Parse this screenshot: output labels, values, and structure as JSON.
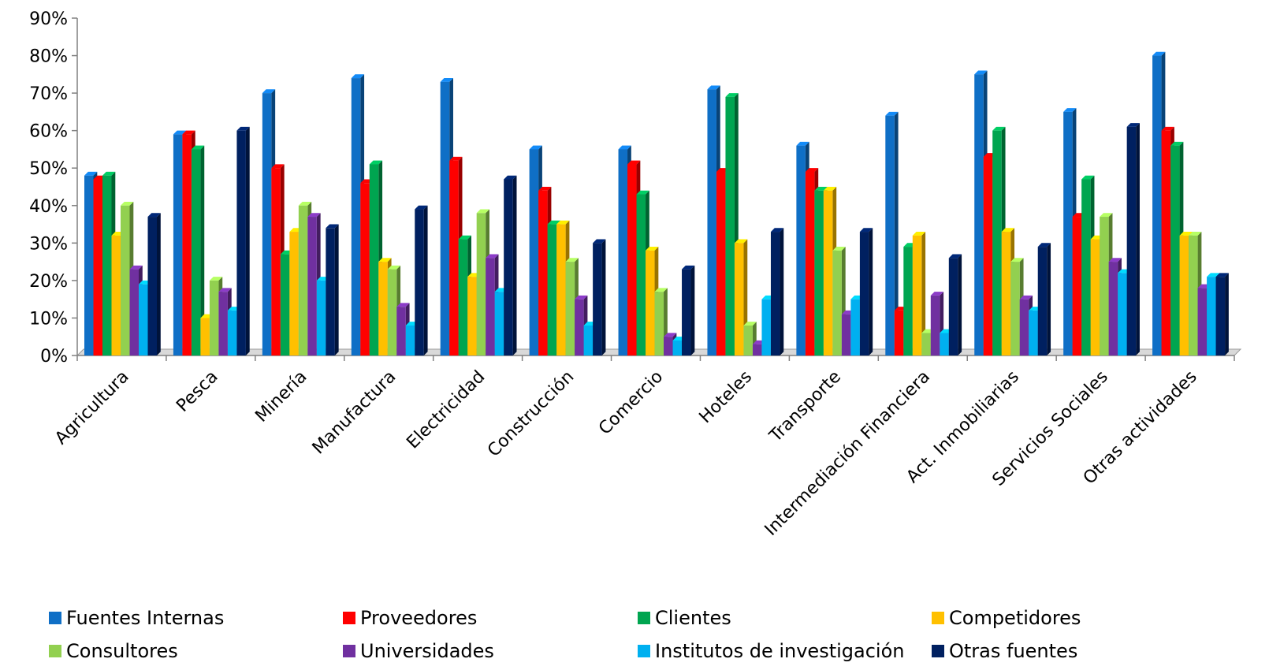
{
  "chart_data": {
    "type": "bar",
    "title": "",
    "xlabel": "",
    "ylabel": "",
    "ylim": [
      0,
      90
    ],
    "yticks": [
      "0%",
      "10%",
      "20%",
      "30%",
      "40%",
      "50%",
      "60%",
      "70%",
      "80%",
      "90%"
    ],
    "grid": false,
    "legend_position": "bottom",
    "categories": [
      "Agricultura",
      "Pesca",
      "Minería",
      "Manufactura",
      "Electricidad",
      "Construcción",
      "Comercio",
      "Hoteles",
      "Transporte",
      "Intermediación Financiera",
      "Act. Inmobiliarias",
      "Servicios Sociales",
      "Otras actividades"
    ],
    "series": [
      {
        "name": "Fuentes Internas",
        "color": "#0f6fc6",
        "values": [
          48,
          59,
          70,
          74,
          73,
          55,
          55,
          71,
          56,
          64,
          75,
          65,
          80
        ]
      },
      {
        "name": "Proveedores",
        "color": "#ff0000",
        "values": [
          47,
          59,
          50,
          46,
          52,
          44,
          51,
          49,
          49,
          12,
          53,
          37,
          60
        ]
      },
      {
        "name": "Clientes",
        "color": "#00a550",
        "values": [
          48,
          55,
          27,
          51,
          31,
          35,
          43,
          69,
          44,
          29,
          60,
          47,
          56
        ]
      },
      {
        "name": "Competidores",
        "color": "#ffc000",
        "values": [
          32,
          10,
          33,
          25,
          21,
          35,
          28,
          30,
          44,
          32,
          33,
          31,
          32
        ]
      },
      {
        "name": "Consultores",
        "color": "#92d050",
        "values": [
          40,
          20,
          40,
          23,
          38,
          25,
          17,
          8,
          28,
          6,
          25,
          37,
          32
        ]
      },
      {
        "name": "Universidades",
        "color": "#7030a0",
        "values": [
          23,
          17,
          37,
          13,
          26,
          15,
          5,
          3,
          11,
          16,
          15,
          25,
          18
        ]
      },
      {
        "name": "Institutos de investigación",
        "color": "#00b0f0",
        "values": [
          19,
          12,
          20,
          8,
          17,
          8,
          4,
          15,
          15,
          6,
          12,
          22,
          21
        ]
      },
      {
        "name": "Otras fuentes",
        "color": "#002060",
        "values": [
          37,
          60,
          34,
          39,
          47,
          30,
          23,
          33,
          33,
          26,
          29,
          61,
          21
        ]
      }
    ]
  }
}
